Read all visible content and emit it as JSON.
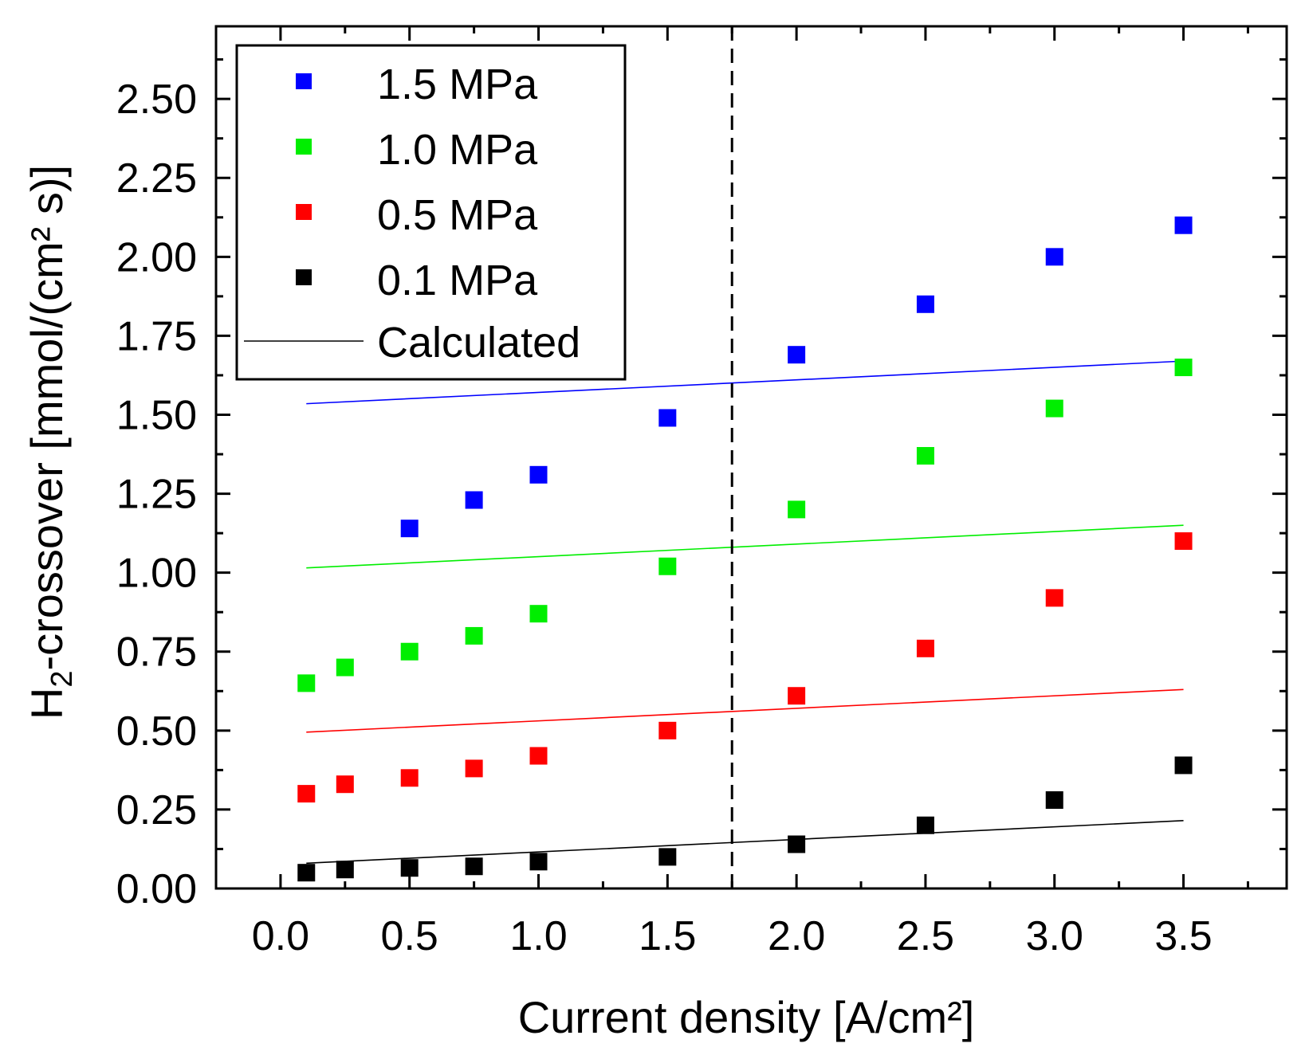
{
  "chart_data": {
    "type": "scatter",
    "title": "",
    "xlabel": "Current density [A/cm²]",
    "ylabel": {
      "prefix": "H",
      "subscript": "2",
      "suffix": "-crossover [mmol/(cm² s)]"
    },
    "xlim": [
      -0.25,
      3.9
    ],
    "ylim": [
      0,
      2.73
    ],
    "x_ticks": [
      "0.0",
      "0.5",
      "1.0",
      "1.5",
      "2.0",
      "2.5",
      "3.0",
      "3.5"
    ],
    "y_ticks": [
      "0.00",
      "0.25",
      "0.50",
      "0.75",
      "1.00",
      "1.25",
      "1.50",
      "1.75",
      "2.00",
      "2.25",
      "2.50"
    ],
    "vline_x": 1.75,
    "legend_position": "top-left",
    "series": [
      {
        "name": "1.5 MPa",
        "color": "#0000ff",
        "x": [
          0.5,
          0.75,
          1.0,
          1.5,
          2.0,
          2.5,
          3.0,
          3.5
        ],
        "values": [
          1.14,
          1.23,
          1.31,
          1.49,
          1.69,
          1.85,
          2.0,
          2.1
        ],
        "calculated": [
          [
            0.1,
            1.535
          ],
          [
            3.5,
            1.67
          ]
        ]
      },
      {
        "name": "1.0 MPa",
        "color": "#00ee00",
        "x": [
          0.1,
          0.25,
          0.5,
          0.75,
          1.0,
          1.5,
          2.0,
          2.5,
          3.0,
          3.5
        ],
        "values": [
          0.65,
          0.7,
          0.75,
          0.8,
          0.87,
          1.02,
          1.2,
          1.37,
          1.52,
          1.65
        ],
        "calculated": [
          [
            0.1,
            1.015
          ],
          [
            3.5,
            1.15
          ]
        ]
      },
      {
        "name": "0.5 MPa",
        "color": "#ff0000",
        "x": [
          0.1,
          0.25,
          0.5,
          0.75,
          1.0,
          1.5,
          2.0,
          2.5,
          3.0,
          3.5
        ],
        "values": [
          0.3,
          0.33,
          0.35,
          0.38,
          0.42,
          0.5,
          0.61,
          0.76,
          0.92,
          1.1
        ],
        "calculated": [
          [
            0.1,
            0.495
          ],
          [
            3.5,
            0.63
          ]
        ]
      },
      {
        "name": "0.1 MPa",
        "color": "#000000",
        "x": [
          0.1,
          0.25,
          0.5,
          0.75,
          1.0,
          1.5,
          2.0,
          2.5,
          3.0,
          3.5
        ],
        "values": [
          0.05,
          0.06,
          0.065,
          0.07,
          0.085,
          0.1,
          0.14,
          0.2,
          0.28,
          0.39
        ],
        "calculated": [
          [
            0.1,
            0.08
          ],
          [
            3.5,
            0.215
          ]
        ]
      }
    ],
    "legend": {
      "calculated_label": "Calculated",
      "calculated_color": "#000000"
    }
  }
}
